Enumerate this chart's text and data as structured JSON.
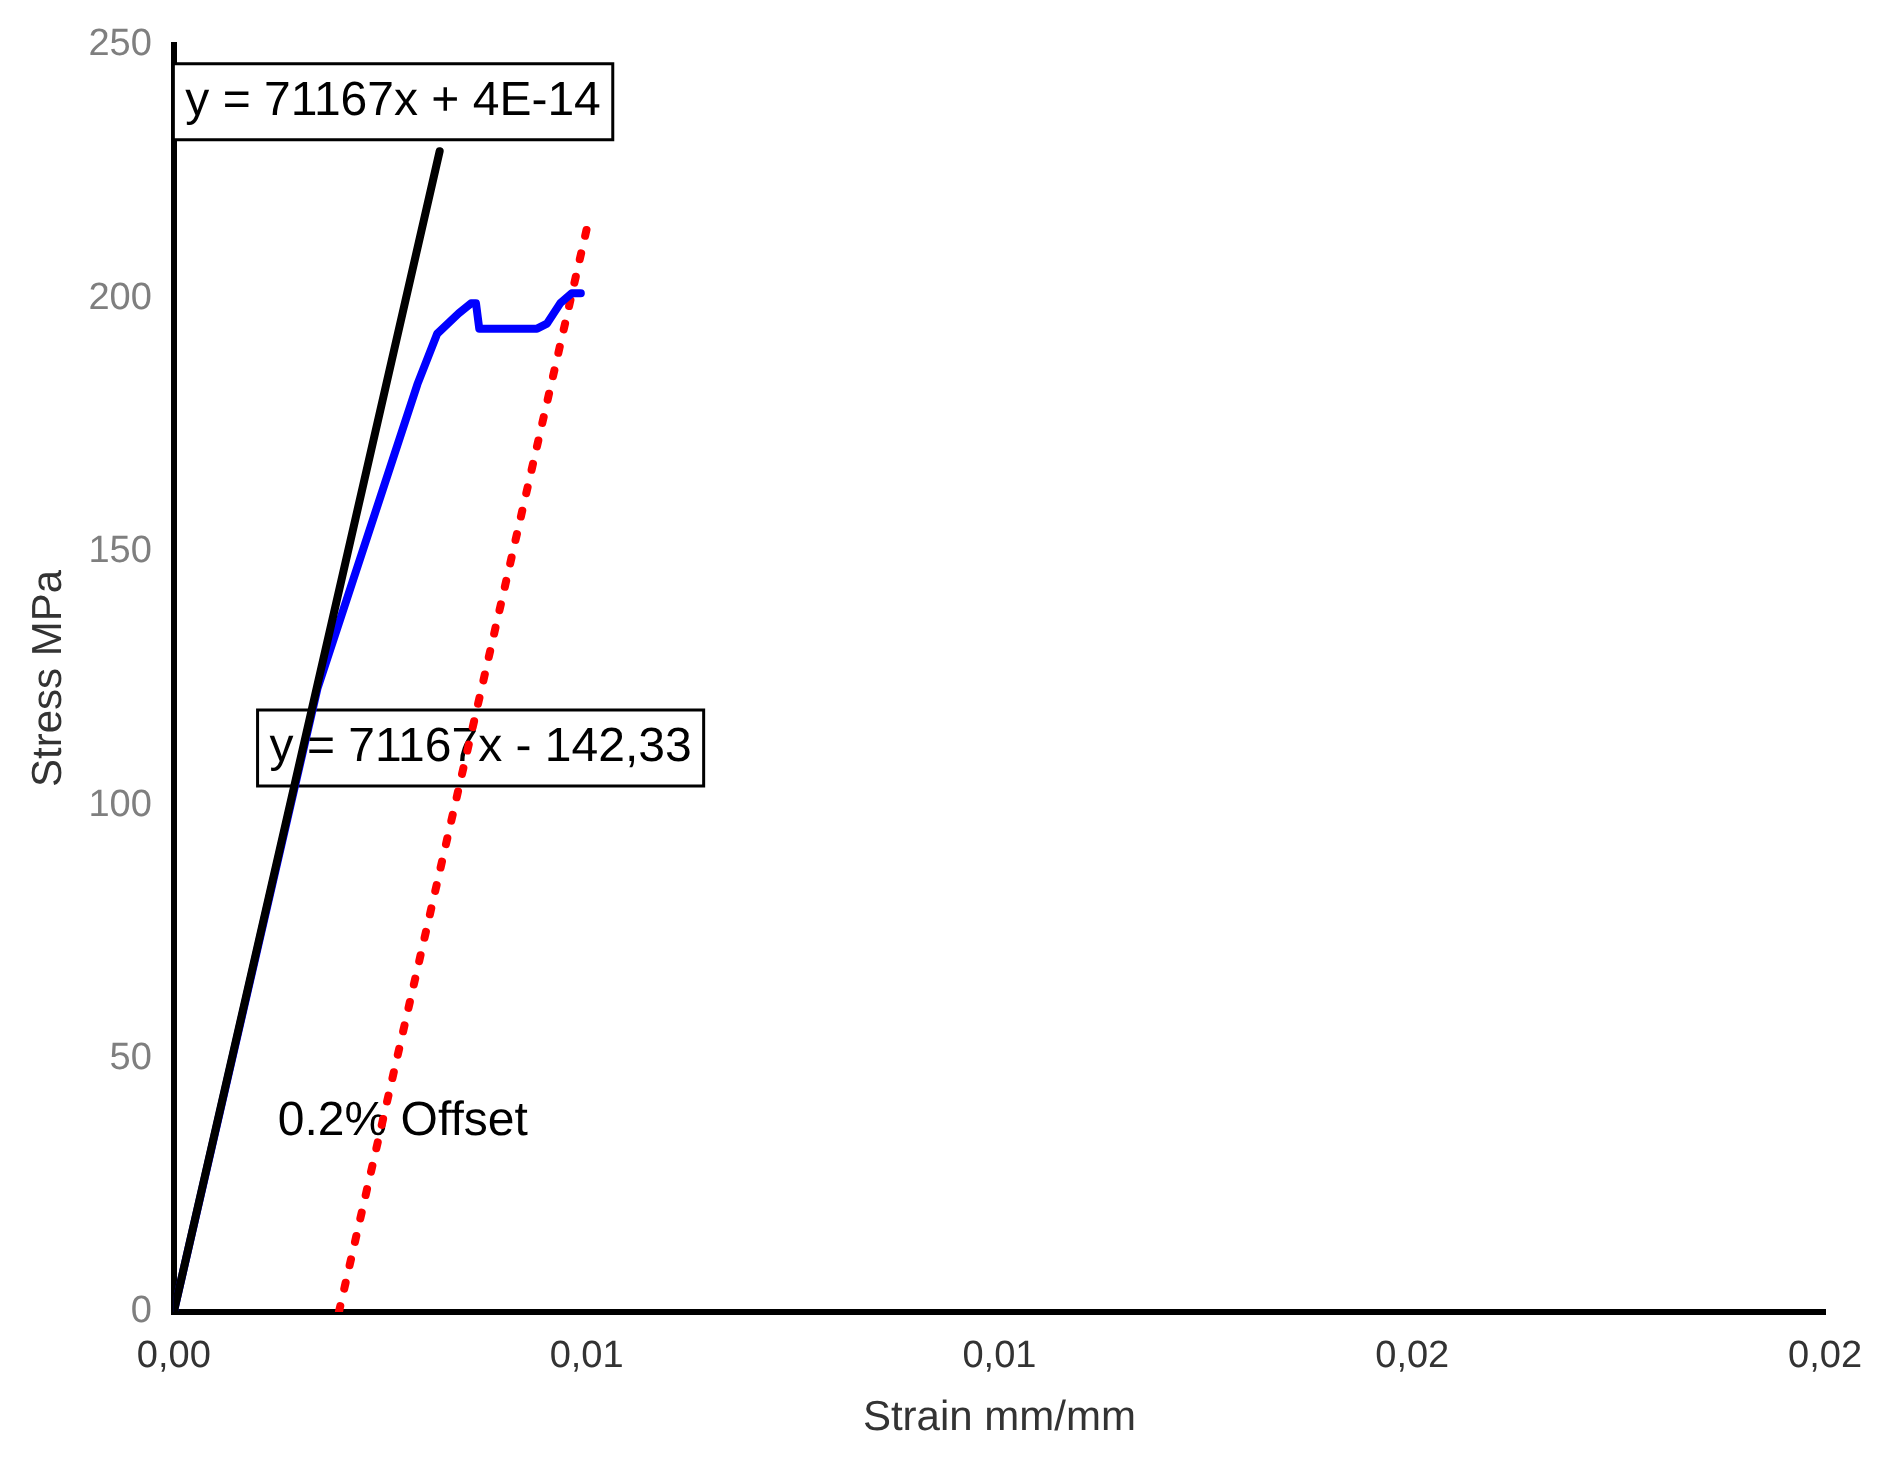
{
  "chart_data": {
    "type": "line",
    "xlabel": "Strain mm/mm",
    "ylabel": "Stress MPa",
    "xlim": [
      0,
      0.02
    ],
    "ylim": [
      0,
      250
    ],
    "xticks": [
      {
        "value": 0,
        "label": "0,00"
      },
      {
        "value": 0.005,
        "label": "0,01"
      },
      {
        "value": 0.01,
        "label": "0,01"
      },
      {
        "value": 0.015,
        "label": "0,02"
      },
      {
        "value": 0.02,
        "label": "0,02"
      }
    ],
    "yticks": [
      0,
      50,
      100,
      150,
      200,
      250
    ],
    "grid": false,
    "legend": false,
    "marker": "none",
    "series": [
      {
        "color": "#000000",
        "line_style": "solid",
        "x": [
          0,
          0.00322
        ],
        "values": [
          0,
          229
        ]
      },
      {
        "color": "#0000ff",
        "line_style": "solid",
        "x": [
          0,
          0.00174,
          0.00295,
          0.00319,
          0.00345,
          0.0036,
          0.00366,
          0.0037,
          0.0044,
          0.00452,
          0.00468,
          0.00482,
          0.00493
        ],
        "values": [
          0,
          123,
          183,
          193,
          197,
          199,
          199,
          194,
          194,
          195,
          199,
          201,
          201
        ]
      },
      {
        "color": "#ff0000",
        "line_style": "dotted",
        "x": [
          0.002,
          0.00502
        ],
        "values": [
          0,
          215
        ]
      }
    ],
    "annotations": [
      "y = 71167x + 4E-14",
      "y = 71167x - 142,33",
      "0.2% Offset"
    ]
  }
}
